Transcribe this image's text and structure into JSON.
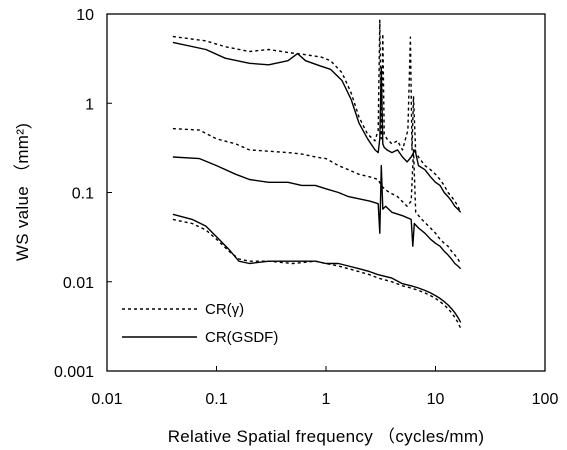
{
  "chart_data": {
    "type": "line",
    "xlabel": "Relative Spatial frequency （cycles/mm)",
    "ylabel": "WS value （mm²)",
    "xscale": "log",
    "yscale": "log",
    "xlim": [
      0.01,
      100
    ],
    "ylim": [
      0.001,
      10
    ],
    "x_ticks": [
      "0.01",
      "0.1",
      "1",
      "10",
      "100"
    ],
    "y_ticks": [
      "0.001",
      "0.01",
      "0.1",
      "1",
      "10"
    ],
    "grid": false,
    "legend_position": "bottom-left",
    "legend": [
      {
        "label": "CR(γ)",
        "style": "dashed"
      },
      {
        "label": "CR(GSDF)",
        "style": "solid"
      }
    ],
    "series": [
      {
        "group": "upper",
        "name": "CR(γ)",
        "style": "dashed",
        "x": [
          0.04,
          0.08,
          0.12,
          0.2,
          0.3,
          0.45,
          0.65,
          0.9,
          1.1,
          1.4,
          1.7,
          2.0,
          2.4,
          2.8,
          3.0,
          3.1,
          3.2,
          3.3,
          3.4,
          3.6,
          4.0,
          4.5,
          5.0,
          5.6,
          5.9,
          6.1,
          6.3,
          6.6,
          7.0,
          8.0,
          9.0,
          10.0,
          11.0,
          12.0,
          13.0,
          14.0,
          15.0,
          16.0,
          17.0
        ],
        "y": [
          5.6,
          5.0,
          4.3,
          3.8,
          4.0,
          3.7,
          3.5,
          3.3,
          3.0,
          2.2,
          1.3,
          0.7,
          0.45,
          0.38,
          0.5,
          8.5,
          0.4,
          6.0,
          0.45,
          0.4,
          0.35,
          0.38,
          0.3,
          0.5,
          5.5,
          0.3,
          1.2,
          0.28,
          0.25,
          0.2,
          0.18,
          0.16,
          0.14,
          0.12,
          0.1,
          0.09,
          0.08,
          0.07,
          0.06
        ]
      },
      {
        "group": "upper",
        "name": "CR(GSDF)",
        "style": "solid",
        "x": [
          0.04,
          0.08,
          0.12,
          0.2,
          0.3,
          0.45,
          0.55,
          0.65,
          0.9,
          1.1,
          1.4,
          1.7,
          2.0,
          2.4,
          2.8,
          3.0,
          3.1,
          3.2,
          3.3,
          3.4,
          3.6,
          4.0,
          4.5,
          5.0,
          5.5,
          6.0,
          6.5,
          7.0,
          8.0,
          9.0,
          10.0,
          11.0,
          12.0,
          13.0,
          14.0,
          15.0,
          16.0,
          17.0
        ],
        "y": [
          4.8,
          4.0,
          3.2,
          2.8,
          2.7,
          3.0,
          3.6,
          3.0,
          2.6,
          2.4,
          1.8,
          1.1,
          0.6,
          0.4,
          0.3,
          0.28,
          0.4,
          2.5,
          0.35,
          0.32,
          0.3,
          0.28,
          0.3,
          0.25,
          0.22,
          0.25,
          0.3,
          0.2,
          0.18,
          0.15,
          0.13,
          0.12,
          0.1,
          0.09,
          0.08,
          0.07,
          0.065,
          0.06
        ]
      },
      {
        "group": "middle",
        "name": "CR(γ)",
        "style": "dashed",
        "x": [
          0.04,
          0.07,
          0.1,
          0.15,
          0.2,
          0.3,
          0.45,
          0.6,
          0.8,
          1.0,
          1.3,
          1.6,
          2.0,
          2.5,
          3.0,
          3.2,
          3.4,
          3.8,
          4.5,
          5.5,
          6.0,
          6.3,
          6.6,
          7.5,
          9.0,
          10.0,
          11.0,
          12.0,
          13.0,
          14.0,
          15.0,
          16.0,
          17.0
        ],
        "y": [
          0.52,
          0.5,
          0.4,
          0.35,
          0.3,
          0.29,
          0.28,
          0.27,
          0.25,
          0.24,
          0.2,
          0.18,
          0.16,
          0.15,
          0.14,
          0.12,
          0.11,
          0.1,
          0.09,
          0.07,
          0.08,
          0.3,
          0.06,
          0.05,
          0.04,
          0.035,
          0.03,
          0.027,
          0.025,
          0.022,
          0.02,
          0.018,
          0.016
        ]
      },
      {
        "group": "middle",
        "name": "CR(GSDF)",
        "style": "solid",
        "x": [
          0.04,
          0.07,
          0.1,
          0.15,
          0.2,
          0.3,
          0.45,
          0.6,
          0.8,
          1.0,
          1.3,
          1.6,
          2.0,
          2.5,
          3.0,
          3.1,
          3.2,
          3.3,
          3.5,
          4.0,
          5.0,
          6.0,
          6.2,
          6.4,
          7.0,
          8.0,
          9.0,
          10.0,
          11.0,
          12.0,
          13.0,
          14.0,
          15.0,
          16.0,
          17.0
        ],
        "y": [
          0.25,
          0.24,
          0.2,
          0.16,
          0.14,
          0.13,
          0.13,
          0.12,
          0.12,
          0.11,
          0.1,
          0.09,
          0.085,
          0.08,
          0.075,
          0.035,
          0.2,
          0.065,
          0.07,
          0.06,
          0.055,
          0.05,
          0.025,
          0.045,
          0.04,
          0.035,
          0.03,
          0.027,
          0.025,
          0.022,
          0.02,
          0.018,
          0.016,
          0.015,
          0.014
        ]
      },
      {
        "group": "lower",
        "name": "CR(γ)",
        "style": "dashed",
        "x": [
          0.04,
          0.06,
          0.08,
          0.1,
          0.13,
          0.16,
          0.2,
          0.3,
          0.5,
          0.8,
          1.0,
          1.3,
          1.6,
          2.0,
          2.5,
          3.0,
          4.0,
          5.0,
          6.0,
          7.0,
          8.0,
          9.0,
          10.0,
          11.0,
          12.0,
          13.0,
          14.0,
          15.0,
          16.0,
          17.0
        ],
        "y": [
          0.05,
          0.045,
          0.038,
          0.03,
          0.022,
          0.018,
          0.017,
          0.017,
          0.016,
          0.017,
          0.016,
          0.015,
          0.014,
          0.013,
          0.012,
          0.011,
          0.01,
          0.009,
          0.0085,
          0.008,
          0.0075,
          0.007,
          0.0065,
          0.006,
          0.0055,
          0.005,
          0.0045,
          0.004,
          0.0035,
          0.003
        ]
      },
      {
        "group": "lower",
        "name": "CR(GSDF)",
        "style": "solid",
        "x": [
          0.04,
          0.06,
          0.08,
          0.1,
          0.13,
          0.16,
          0.2,
          0.3,
          0.5,
          0.8,
          1.0,
          1.3,
          1.6,
          2.0,
          2.5,
          3.0,
          4.0,
          5.0,
          6.0,
          7.0,
          8.0,
          9.0,
          10.0,
          11.0,
          12.0,
          13.0,
          14.0,
          15.0,
          16.0,
          17.0
        ],
        "y": [
          0.057,
          0.05,
          0.042,
          0.032,
          0.023,
          0.017,
          0.016,
          0.017,
          0.017,
          0.017,
          0.016,
          0.016,
          0.015,
          0.014,
          0.013,
          0.012,
          0.011,
          0.0095,
          0.009,
          0.0085,
          0.008,
          0.0075,
          0.007,
          0.0065,
          0.006,
          0.0055,
          0.005,
          0.0045,
          0.004,
          0.0035
        ]
      }
    ]
  }
}
